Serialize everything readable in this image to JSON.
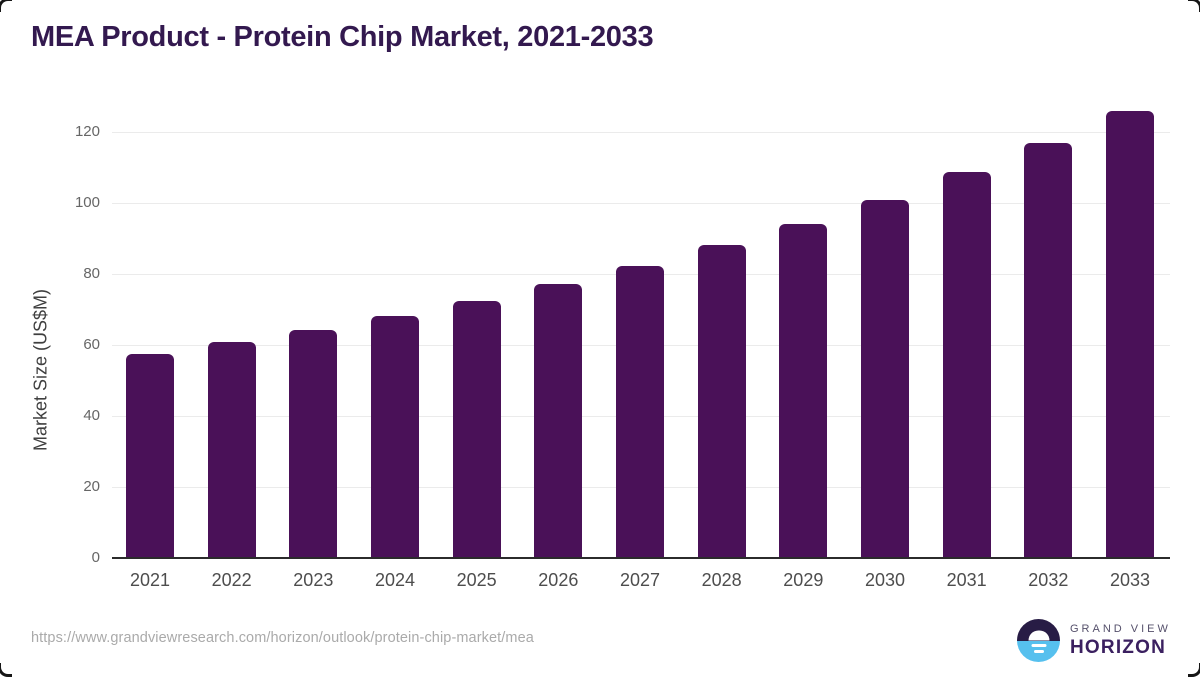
{
  "page": {
    "title": "MEA Product - Protein Chip Market, 2021-2033",
    "source_url": "https://www.grandviewresearch.com/horizon/outlook/protein-chip-market/mea"
  },
  "chart_data": {
    "type": "bar",
    "title": "MEA Product - Protein Chip Market, 2021-2033",
    "categories": [
      "2021",
      "2022",
      "2023",
      "2024",
      "2025",
      "2026",
      "2027",
      "2028",
      "2029",
      "2030",
      "2031",
      "2032",
      "2033"
    ],
    "values": [
      57.4,
      60.8,
      64.2,
      68.1,
      72.3,
      77.2,
      82.3,
      88.1,
      94.0,
      100.8,
      108.6,
      116.9,
      126.0
    ],
    "xlabel": "",
    "ylabel": "Market Size (US$M)",
    "ylim": [
      0,
      129
    ],
    "yticks": [
      0,
      20,
      40,
      60,
      80,
      100,
      120
    ],
    "grid": "horizontal-only",
    "legend": "none",
    "bar_color": "#4a1158"
  },
  "branding": {
    "logo_line1": "GRAND VIEW",
    "logo_line2": "HORIZON",
    "logo_mark": "sunrise-over-water-icon",
    "mark_top_color": "#281c45",
    "mark_bottom_color": "#56c0ee"
  },
  "colors": {
    "title_text": "#33194f",
    "bar": "#4a1158",
    "gridline": "#ebebeb",
    "axis_line": "#2b2b2b",
    "x_tick_text": "#4d4d4d",
    "y_tick_text": "#666666",
    "source_text": "#aaaaaa",
    "background": "#ffffff"
  }
}
